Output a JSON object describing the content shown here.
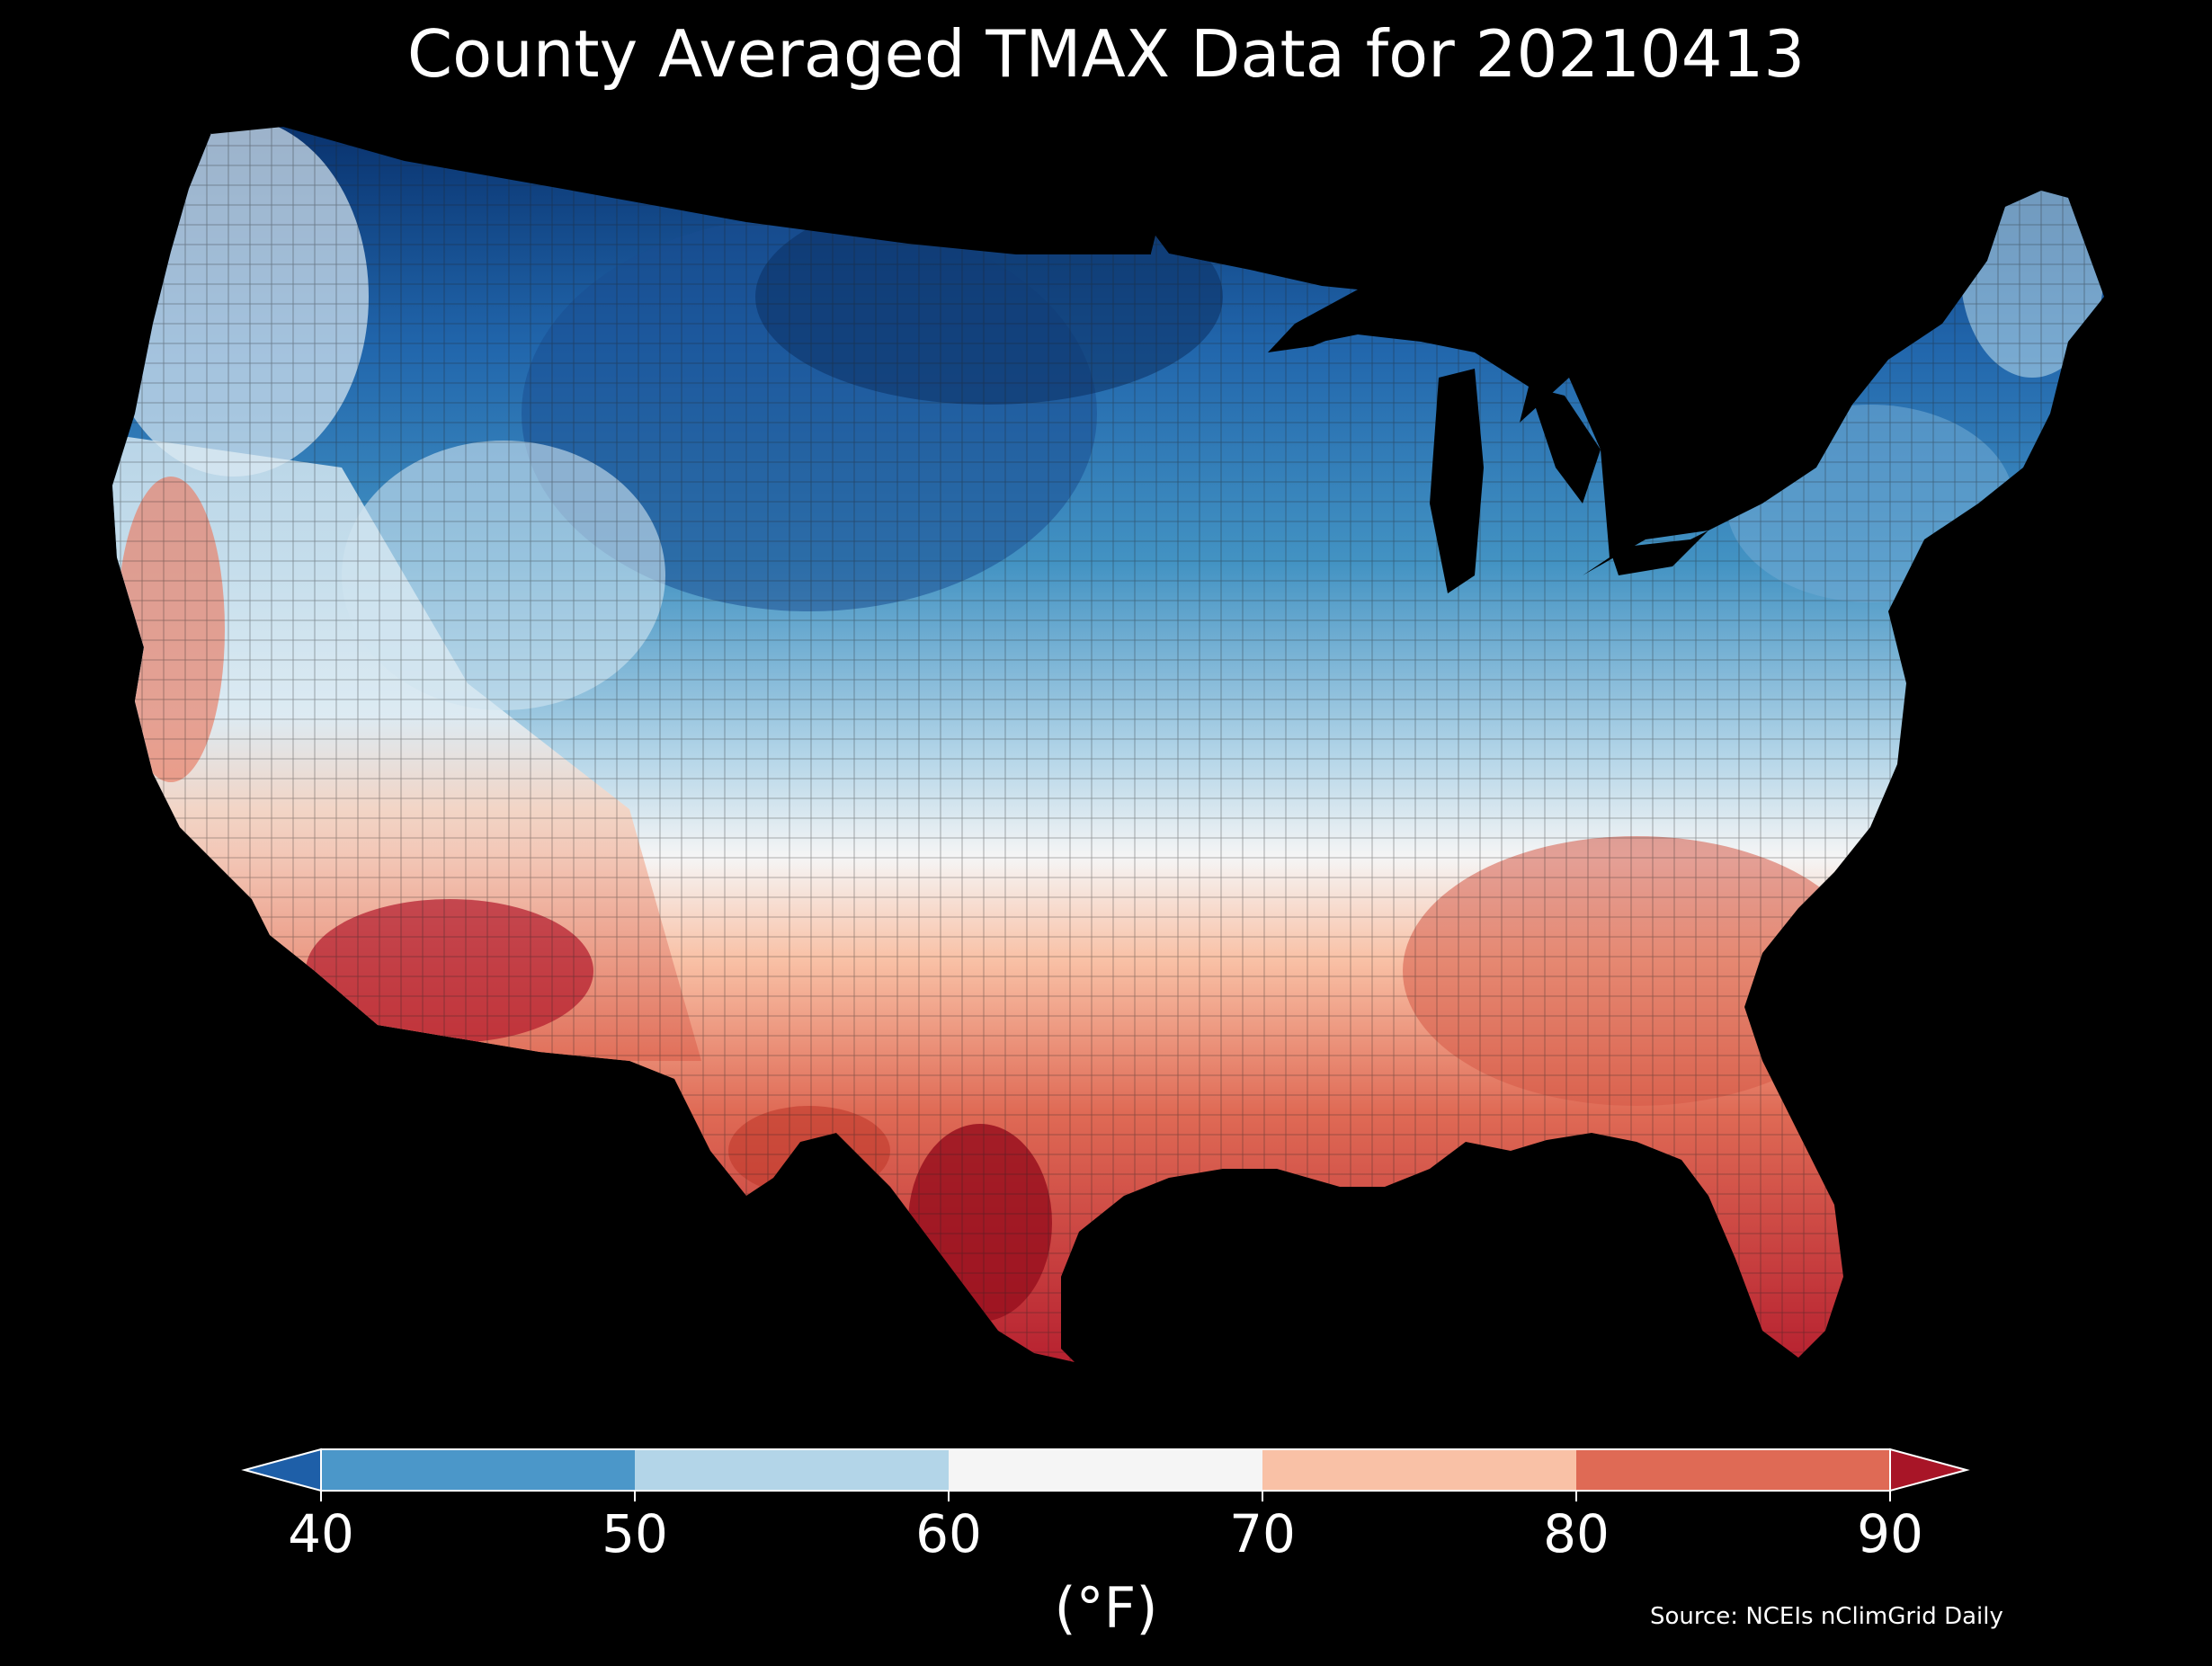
{
  "title": "County Averaged TMAX Data for 20210413",
  "colorbar": {
    "ticks": [
      "40",
      "50",
      "60",
      "70",
      "80",
      "90"
    ],
    "unit_label": "(°F)",
    "bins": [
      {
        "range": [
          40,
          50
        ],
        "color": "#4b97c9"
      },
      {
        "range": [
          50,
          60
        ],
        "color": "#b3d5e8"
      },
      {
        "range": [
          60,
          70
        ],
        "color": "#f5f5f5"
      },
      {
        "range": [
          70,
          80
        ],
        "color": "#f9c1a6"
      },
      {
        "range": [
          80,
          90
        ],
        "color": "#df6a55"
      }
    ],
    "under_color": "#1e5fa8",
    "over_color": "#a81527"
  },
  "source": "Source: NCEIs nClimGrid Daily",
  "map": {
    "region": "Contiguous United States",
    "variable": "TMAX",
    "date": "20210413",
    "background": "#000000"
  }
}
